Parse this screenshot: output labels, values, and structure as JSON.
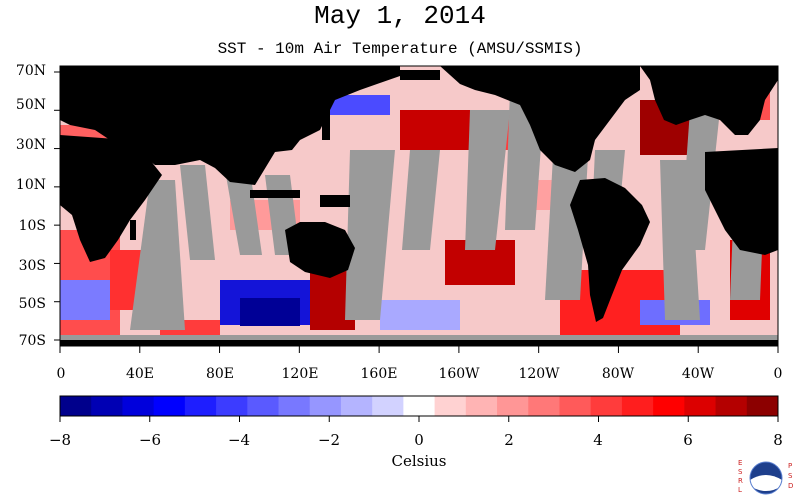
{
  "title": "May 1, 2014",
  "subtitle": "SST - 10m Air Temperature (AMSU/SSMIS)",
  "map": {
    "lat_labels": [
      "70N",
      "50N",
      "30N",
      "10N",
      "10S",
      "30S",
      "50S",
      "70S"
    ],
    "lon_labels": [
      "0",
      "40E",
      "80E",
      "120E",
      "160E",
      "160W",
      "120W",
      "80W",
      "40W",
      "0"
    ],
    "colors": {
      "land": "#000000",
      "missing": "#9a9a9a",
      "ocean_base": "#f6c9c9"
    }
  },
  "colorbar": {
    "tick_labels": [
      "−8",
      "−6",
      "−4",
      "−2",
      "0",
      "2",
      "4",
      "6",
      "8"
    ],
    "unit": "Celsius",
    "colors": [
      "#00008c",
      "#0000b4",
      "#0000dc",
      "#0000ff",
      "#1e1eff",
      "#3c3cff",
      "#5a5aff",
      "#7878ff",
      "#9696ff",
      "#b4b4ff",
      "#d2d2ff",
      "#ffffff",
      "#ffd2d2",
      "#ffb4b4",
      "#ff9696",
      "#ff7878",
      "#ff5a5a",
      "#ff3c3c",
      "#ff1e1e",
      "#ff0000",
      "#dc0000",
      "#b40000",
      "#8c0000"
    ]
  },
  "logo": {
    "left_text": "ESRL",
    "right_text": "PSD",
    "center_text": "NOAA"
  }
}
